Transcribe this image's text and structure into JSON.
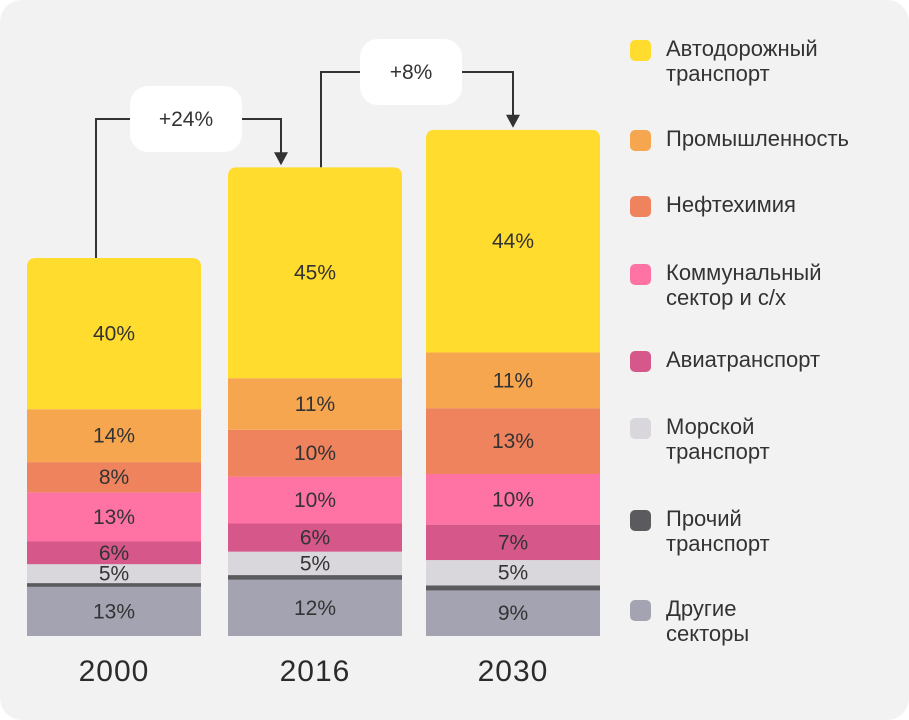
{
  "chart_data": {
    "type": "bar",
    "stacked": true,
    "categories": [
      "2000",
      "2016",
      "2030"
    ],
    "totals_relative": [
      1.0,
      1.24,
      1.3392
    ],
    "series": [
      {
        "name": "Автодорожный\nтранспорт",
        "color": "#FFDC2E",
        "values": [
          40,
          45,
          44
        ],
        "labels": [
          "40%",
          "45%",
          "44%"
        ]
      },
      {
        "name": "Промышленность",
        "color": "#F7A650",
        "values": [
          14,
          11,
          11
        ],
        "labels": [
          "14%",
          "11%",
          "11%"
        ]
      },
      {
        "name": "Нефтехимия",
        "color": "#EE835D",
        "values": [
          8,
          10,
          13
        ],
        "labels": [
          "8%",
          "10%",
          "13%"
        ]
      },
      {
        "name": "Коммунальный\nсектор и с/х",
        "color": "#FF72A4",
        "values": [
          13,
          10,
          10
        ],
        "labels": [
          "13%",
          "10%",
          "10%"
        ]
      },
      {
        "name": "Авиатранспорт",
        "color": "#D6578A",
        "values": [
          6,
          6,
          7
        ],
        "labels": [
          "6%",
          "6%",
          "7%"
        ]
      },
      {
        "name": "Морской\nтранспорт",
        "color": "#D9D7DC",
        "values": [
          5,
          5,
          5
        ],
        "labels": [
          "5%",
          "5%",
          "5%"
        ]
      },
      {
        "name": "Прочий\nтранспорт",
        "color": "#5B5B5F",
        "values": [
          1,
          1,
          1
        ],
        "labels": [
          "",
          "",
          ""
        ]
      },
      {
        "name": "Другие\nсекторы",
        "color": "#A4A3B1",
        "values": [
          13,
          12,
          9
        ],
        "labels": [
          "13%",
          "12%",
          "9%"
        ]
      }
    ],
    "annotations": [
      {
        "from": "2000",
        "to": "2016",
        "text": "+24%"
      },
      {
        "from": "2016",
        "to": "2030",
        "text": "+8%"
      }
    ]
  }
}
